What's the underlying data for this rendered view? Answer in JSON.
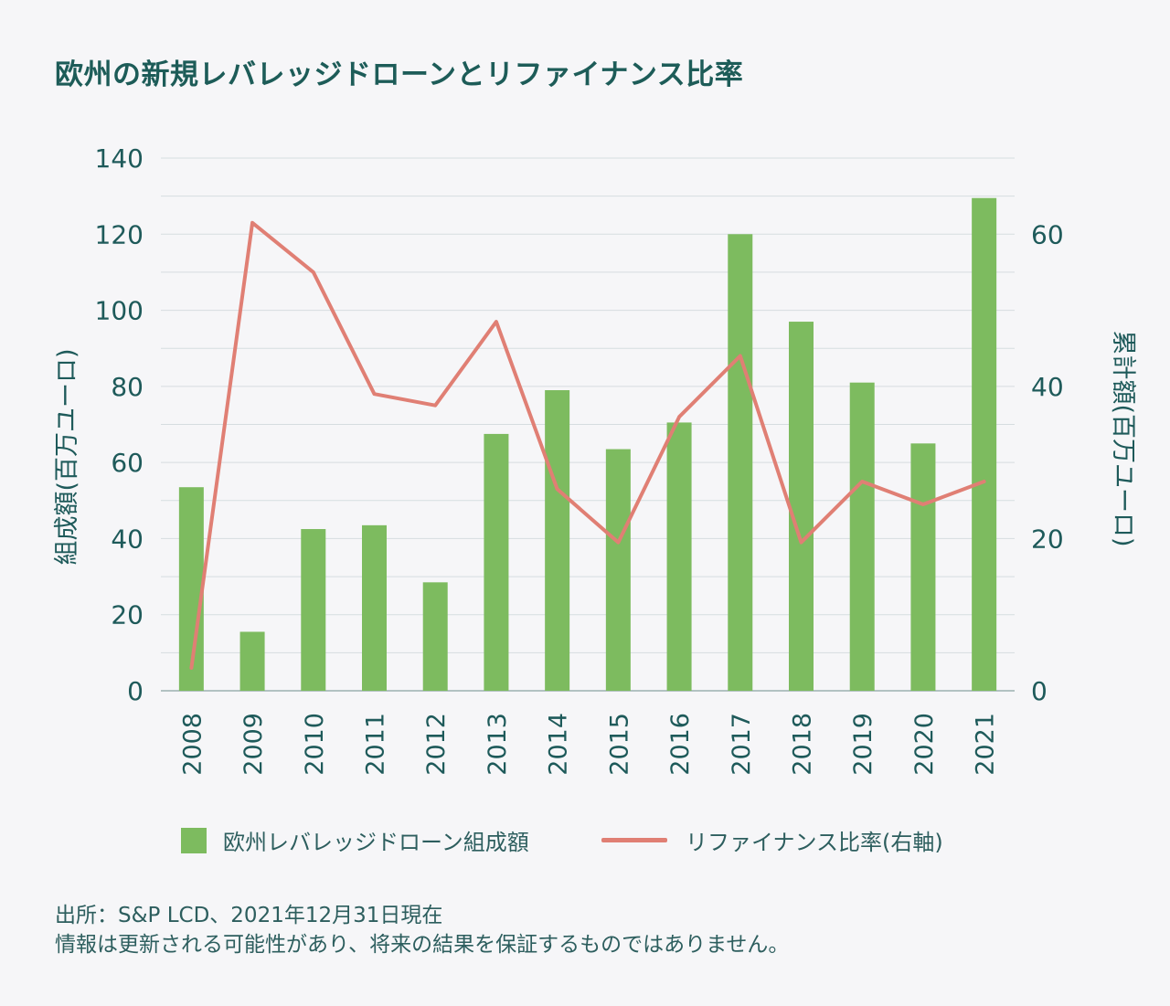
{
  "title": "欧州の新規レバレッジドローンとリファイナンス比率",
  "chart_data": {
    "type": "bar",
    "categories": [
      "2008",
      "2009",
      "2010",
      "2011",
      "2012",
      "2013",
      "2014",
      "2015",
      "2016",
      "2017",
      "2018",
      "2019",
      "2020",
      "2021"
    ],
    "series": [
      {
        "name": "欧州レバレッジドローン組成額",
        "type": "bar",
        "axis": "left",
        "color": "#7dbb5f",
        "values": [
          53.5,
          15.5,
          42.5,
          43.5,
          28.5,
          67.5,
          79,
          63.5,
          70.5,
          120,
          97,
          81,
          65,
          129.5
        ]
      },
      {
        "name": "リファイナンス比率(右軸)",
        "type": "line",
        "axis": "right",
        "color": "#e07f74",
        "values": [
          3,
          61.5,
          55,
          39,
          37.5,
          48.5,
          26.5,
          19.5,
          36,
          44,
          19.5,
          27.5,
          24.5,
          27.5
        ]
      }
    ],
    "y_left": {
      "label": "組成額(百万ユーロ)",
      "ylim": [
        0,
        140
      ],
      "ticks": [
        "0",
        "20",
        "40",
        "60",
        "80",
        "100",
        "120",
        "140"
      ]
    },
    "y_right": {
      "label": "累計額(百万ユーロ)",
      "ylim": [
        0,
        70
      ],
      "ticks": [
        "0",
        "20",
        "40",
        "60"
      ]
    },
    "grid": true,
    "legend_position": "bottom"
  },
  "legend": {
    "bar_label": "欧州レバレッジドローン組成額",
    "line_label": "リファイナンス比率(右軸)"
  },
  "source": {
    "line1": "出所：S&P LCD、2021年12月31日現在",
    "line2": "情報は更新される可能性があり、将来の結果を保証するものではありません。"
  }
}
